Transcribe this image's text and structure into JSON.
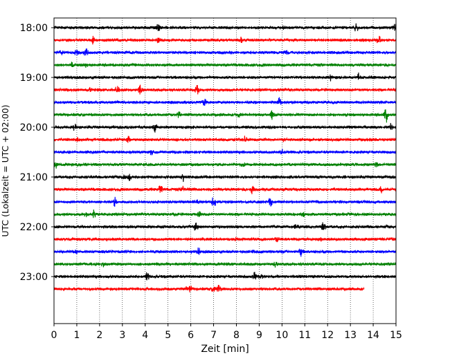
{
  "chart_data": {
    "type": "line",
    "title": "",
    "xlabel": "Zeit  [min]",
    "ylabel": "UTC (Lokalzeit = UTC + 02:00)",
    "xlim": [
      0,
      15
    ],
    "x_ticks": [
      "0",
      "1",
      "2",
      "3",
      "4",
      "5",
      "6",
      "7",
      "8",
      "9",
      "10",
      "11",
      "12",
      "13",
      "14",
      "15"
    ],
    "y_ticks": [
      "18:00",
      "19:00",
      "20:00",
      "21:00",
      "22:00",
      "23:00"
    ],
    "row_start": "18:00",
    "row_interval_minutes": 15,
    "grid": "vertical dotted lines at each minute",
    "row_colors": [
      "#000000",
      "#ff0000",
      "#0000ff",
      "#008000"
    ],
    "rows": [
      {
        "start": "18:00",
        "color": "#000000",
        "end_min": 15
      },
      {
        "start": "18:15",
        "color": "#ff0000",
        "end_min": 15
      },
      {
        "start": "18:30",
        "color": "#0000ff",
        "end_min": 15
      },
      {
        "start": "18:45",
        "color": "#008000",
        "end_min": 15
      },
      {
        "start": "19:00",
        "color": "#000000",
        "end_min": 15
      },
      {
        "start": "19:15",
        "color": "#ff0000",
        "end_min": 15
      },
      {
        "start": "19:30",
        "color": "#0000ff",
        "end_min": 15
      },
      {
        "start": "19:45",
        "color": "#008000",
        "end_min": 15
      },
      {
        "start": "20:00",
        "color": "#000000",
        "end_min": 15
      },
      {
        "start": "20:15",
        "color": "#ff0000",
        "end_min": 15
      },
      {
        "start": "20:30",
        "color": "#0000ff",
        "end_min": 15
      },
      {
        "start": "20:45",
        "color": "#008000",
        "end_min": 15
      },
      {
        "start": "21:00",
        "color": "#000000",
        "end_min": 15
      },
      {
        "start": "21:15",
        "color": "#ff0000",
        "end_min": 15
      },
      {
        "start": "21:30",
        "color": "#0000ff",
        "end_min": 15
      },
      {
        "start": "21:45",
        "color": "#008000",
        "end_min": 15
      },
      {
        "start": "22:00",
        "color": "#000000",
        "end_min": 15
      },
      {
        "start": "22:15",
        "color": "#ff0000",
        "end_min": 15
      },
      {
        "start": "22:30",
        "color": "#0000ff",
        "end_min": 15
      },
      {
        "start": "22:45",
        "color": "#008000",
        "end_min": 15
      },
      {
        "start": "23:00",
        "color": "#000000",
        "end_min": 15
      },
      {
        "start": "23:15",
        "color": "#ff0000",
        "end_min": 13.6
      }
    ]
  }
}
